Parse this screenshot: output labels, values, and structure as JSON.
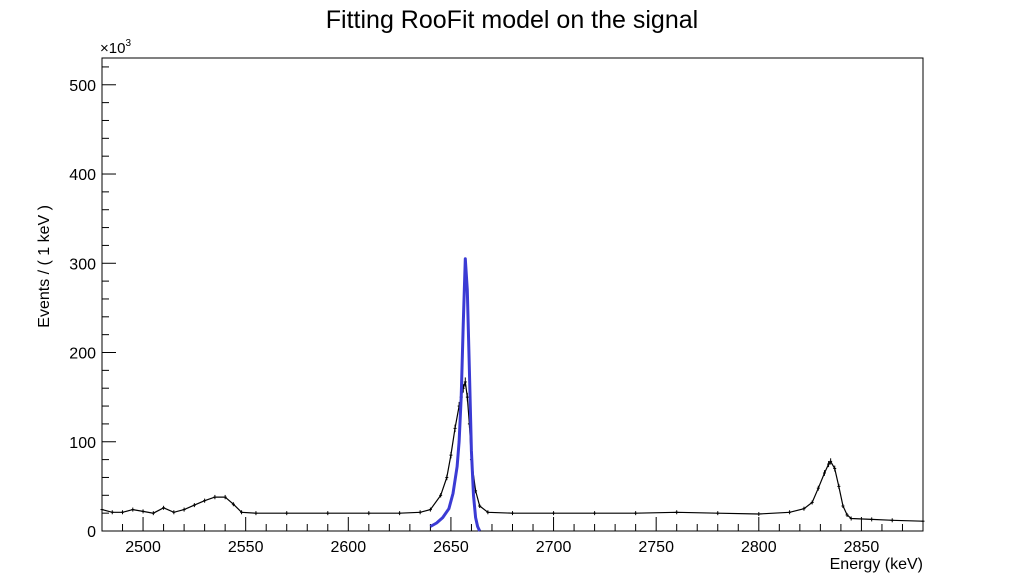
{
  "chart_data": {
    "type": "line",
    "title": "Fitting RooFit model on the signal",
    "xlabel": "Energy (keV)",
    "ylabel": "Events / ( 1 keV )",
    "y_multiplier_label": "×10",
    "y_multiplier_exponent": "3",
    "xlim": [
      2480,
      2880
    ],
    "ylim": [
      0,
      530
    ],
    "x_ticks": [
      2500,
      2550,
      2600,
      2650,
      2700,
      2750,
      2800,
      2850
    ],
    "y_ticks": [
      0,
      100,
      200,
      300,
      400,
      500
    ],
    "grid": false,
    "legend": "none",
    "series": [
      {
        "kind": "data-points-with-errors",
        "color": "#000000",
        "points": [
          [
            2480,
            24
          ],
          [
            2485,
            21
          ],
          [
            2490,
            21
          ],
          [
            2495,
            24
          ],
          [
            2500,
            22
          ],
          [
            2505,
            20
          ],
          [
            2510,
            26
          ],
          [
            2515,
            21
          ],
          [
            2520,
            24
          ],
          [
            2525,
            29
          ],
          [
            2530,
            34
          ],
          [
            2535,
            38
          ],
          [
            2540,
            38
          ],
          [
            2544,
            30
          ],
          [
            2548,
            21
          ],
          [
            2555,
            20
          ],
          [
            2570,
            20
          ],
          [
            2590,
            20
          ],
          [
            2610,
            20
          ],
          [
            2625,
            20
          ],
          [
            2635,
            21
          ],
          [
            2640,
            24
          ],
          [
            2645,
            40
          ],
          [
            2648,
            60
          ],
          [
            2650,
            85
          ],
          [
            2652,
            115
          ],
          [
            2654,
            140
          ],
          [
            2655,
            150
          ],
          [
            2656,
            160
          ],
          [
            2657,
            167
          ],
          [
            2658,
            150
          ],
          [
            2659,
            120
          ],
          [
            2660,
            80
          ],
          [
            2662,
            45
          ],
          [
            2664,
            28
          ],
          [
            2668,
            21
          ],
          [
            2680,
            20
          ],
          [
            2700,
            20
          ],
          [
            2720,
            20
          ],
          [
            2740,
            20
          ],
          [
            2760,
            21
          ],
          [
            2780,
            20
          ],
          [
            2800,
            19
          ],
          [
            2815,
            21
          ],
          [
            2822,
            25
          ],
          [
            2826,
            32
          ],
          [
            2829,
            48
          ],
          [
            2832,
            65
          ],
          [
            2834,
            75
          ],
          [
            2835,
            78
          ],
          [
            2837,
            70
          ],
          [
            2839,
            50
          ],
          [
            2841,
            28
          ],
          [
            2843,
            18
          ],
          [
            2845,
            14
          ],
          [
            2855,
            13
          ],
          [
            2865,
            12
          ],
          [
            2880,
            11
          ]
        ]
      },
      {
        "kind": "fit-curve",
        "color": "#3b3bd4",
        "points": [
          [
            2640,
            5
          ],
          [
            2643,
            9
          ],
          [
            2646,
            15
          ],
          [
            2649,
            25
          ],
          [
            2651,
            42
          ],
          [
            2653,
            72
          ],
          [
            2654,
            100
          ],
          [
            2655,
            150
          ],
          [
            2656,
            230
          ],
          [
            2657,
            305
          ],
          [
            2658,
            270
          ],
          [
            2659,
            180
          ],
          [
            2660,
            90
          ],
          [
            2661,
            40
          ],
          [
            2662,
            15
          ],
          [
            2663,
            5
          ],
          [
            2664,
            0
          ]
        ]
      }
    ]
  }
}
